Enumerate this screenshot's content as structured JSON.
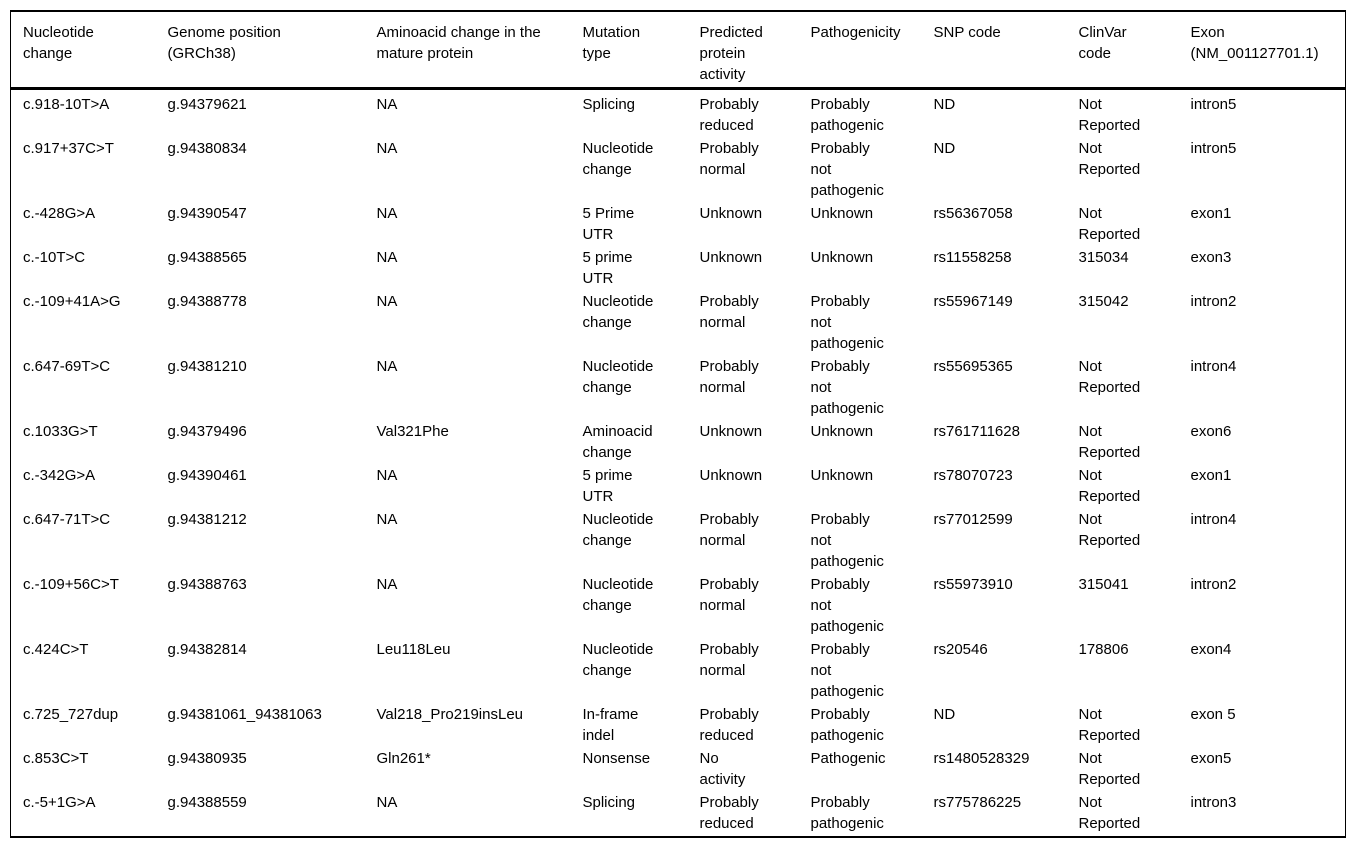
{
  "colors": {
    "background": "#ffffff",
    "text": "#000000",
    "border": "#000000"
  },
  "table": {
    "columns": [
      {
        "id": "nucleotide-change",
        "label": "Nucleotide\nchange"
      },
      {
        "id": "genome-position",
        "label": "Genome position\n(GRCh38)"
      },
      {
        "id": "aminoacid-change",
        "label": "Aminoacid change in the\nmature protein"
      },
      {
        "id": "mutation-type",
        "label": "Mutation\ntype"
      },
      {
        "id": "predicted-protein-activity",
        "label": "Predicted\nprotein\nactivity"
      },
      {
        "id": "pathogenicity",
        "label": "Pathogenicity"
      },
      {
        "id": "snp-code",
        "label": "SNP code"
      },
      {
        "id": "clinvar-code",
        "label": "ClinVar\ncode"
      },
      {
        "id": "exon",
        "label": "Exon\n(NM_001127701.1)"
      }
    ],
    "rows": [
      [
        "c.918-10T>A",
        "g.94379621",
        "NA",
        "Splicing",
        "Probably\nreduced",
        "Probably\npathogenic",
        "ND",
        "Not\nReported",
        "intron5"
      ],
      [
        "c.917+37C>T",
        "g.94380834",
        "NA",
        "Nucleotide\nchange",
        "Probably\nnormal",
        "Probably\nnot\npathogenic",
        "ND",
        "Not\nReported",
        "intron5"
      ],
      [
        "c.-428G>A",
        "g.94390547",
        "NA",
        "5 Prime\nUTR",
        "Unknown",
        "Unknown",
        "rs56367058",
        "Not\nReported",
        "exon1"
      ],
      [
        "c.-10T>C",
        "g.94388565",
        "NA",
        "5 prime\nUTR",
        "Unknown",
        "Unknown",
        "rs11558258",
        "315034",
        "exon3"
      ],
      [
        "c.-109+41A>G",
        "g.94388778",
        "NA",
        "Nucleotide\nchange",
        "Probably\nnormal",
        "Probably\nnot\npathogenic",
        "rs55967149",
        "315042",
        "intron2"
      ],
      [
        "c.647-69T>C",
        "g.94381210",
        "NA",
        "Nucleotide\nchange",
        "Probably\nnormal",
        "Probably\nnot\npathogenic",
        "rs55695365",
        "Not\nReported",
        "intron4"
      ],
      [
        "c.1033G>T",
        "g.94379496",
        "Val321Phe",
        "Aminoacid\nchange",
        "Unknown",
        "Unknown",
        "rs761711628",
        "Not\nReported",
        "exon6"
      ],
      [
        "c.-342G>A",
        "g.94390461",
        "NA",
        "5 prime\nUTR",
        "Unknown",
        "Unknown",
        "rs78070723",
        "Not\nReported",
        "exon1"
      ],
      [
        "c.647-71T>C",
        "g.94381212",
        "NA",
        "Nucleotide\nchange",
        "Probably\nnormal",
        "Probably\nnot\npathogenic",
        "rs77012599",
        "Not\nReported",
        "intron4"
      ],
      [
        "c.-109+56C>T",
        "g.94388763",
        "NA",
        "Nucleotide\nchange",
        "Probably\nnormal",
        "Probably\nnot\npathogenic",
        "rs55973910",
        "315041",
        "intron2"
      ],
      [
        "c.424C>T",
        "g.94382814",
        "Leu118Leu",
        "Nucleotide\nchange",
        "Probably\nnormal",
        "Probably\nnot\npathogenic",
        "rs20546",
        "178806",
        "exon4"
      ],
      [
        "c.725_727dup",
        "g.94381061_94381063",
        "Val218_Pro219insLeu",
        "In-frame\nindel",
        "Probably\nreduced",
        "Probably\npathogenic",
        "ND",
        "Not\nReported",
        "exon 5"
      ],
      [
        "c.853C>T",
        "g.94380935",
        "Gln261*",
        "Nonsense",
        "No\nactivity",
        "Pathogenic",
        "rs1480528329",
        "Not\nReported",
        "exon5"
      ],
      [
        "c.-5+1G>A",
        "g.94388559",
        "NA",
        "Splicing",
        "Probably\nreduced",
        "Probably\npathogenic",
        "rs775786225",
        "Not\nReported",
        "intron3"
      ]
    ]
  }
}
